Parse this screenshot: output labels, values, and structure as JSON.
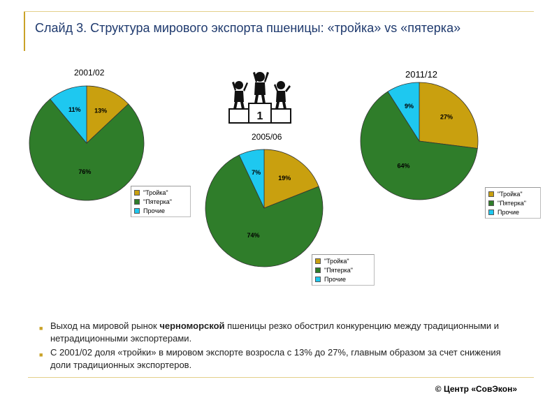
{
  "slide": {
    "title": "Слайд 3. Структура мирового экспорта пшеницы: «тройка» vs «пятерка»",
    "copyright": "© Центр «СовЭкон»",
    "bullets": [
      {
        "prefix": "Выход на мировой рынок ",
        "bold": "черноморской",
        "suffix": " пшеницы резко обострил конкуренцию между традиционными  и нетрадиционными  экспортерами."
      },
      {
        "prefix": " С 2001/02 доля «тройки» в мировом экспорте возросла с 13% до 27%, главным образом за счет снижения доли традиционных экспортеров.",
        "bold": "",
        "suffix": ""
      }
    ],
    "podium_label": "1"
  },
  "colors": {
    "troika": "#c9a00f",
    "pyaterka": "#2f7d2a",
    "prochie": "#1ec8f0"
  },
  "chart_data": [
    {
      "type": "pie",
      "title": "2001/02",
      "categories": [
        "\"Тройка\"",
        "\"Пятерка\"",
        "Прочие"
      ],
      "values": [
        13,
        76,
        11
      ],
      "labels": [
        "13%",
        "76%",
        "11%"
      ],
      "legend": [
        "\"Тройка\"",
        "\"Пятерка\"",
        "Прочие"
      ]
    },
    {
      "type": "pie",
      "title": "2005/06",
      "categories": [
        "\"Тройка\"",
        "\"Пятерка\"",
        "Прочие"
      ],
      "values": [
        19,
        74,
        7
      ],
      "labels": [
        "19%",
        "74%",
        "7%"
      ],
      "legend": [
        "\"Тройка\"",
        "\"Пятерка\"",
        "Прочие"
      ]
    },
    {
      "type": "pie",
      "title": "2011/12",
      "categories": [
        "\"Тройка\"",
        "\"Пятерка\"",
        "Прочие"
      ],
      "values": [
        27,
        64,
        9
      ],
      "labels": [
        "27%",
        "64%",
        "9%"
      ],
      "legend": [
        "\"Тройка\"",
        "\"Пятерка\"",
        "Прочие"
      ]
    }
  ]
}
